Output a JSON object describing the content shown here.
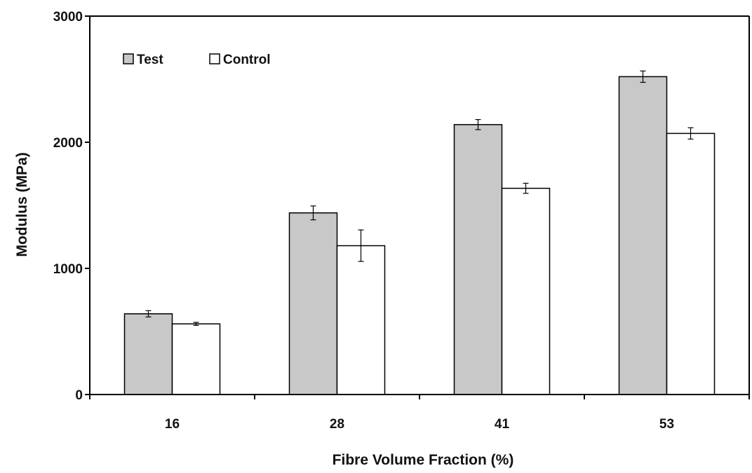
{
  "chart_data": {
    "type": "bar",
    "xlabel": "Fibre Volume Fraction (%)",
    "ylabel": "Modulus (MPa)",
    "categories": [
      "16",
      "28",
      "41",
      "53"
    ],
    "ylim": [
      0,
      3000
    ],
    "yticks": [
      0,
      1000,
      2000,
      3000
    ],
    "grid": false,
    "legend_position": "top-left",
    "series": [
      {
        "name": "Test",
        "color": "#c8c8c8",
        "values": [
          640,
          1440,
          2140,
          2520
        ],
        "errors": [
          25,
          55,
          40,
          45
        ]
      },
      {
        "name": "Control",
        "color": "#ffffff",
        "values": [
          560,
          1180,
          1635,
          2070
        ],
        "errors": [
          12,
          125,
          40,
          45
        ]
      }
    ]
  }
}
